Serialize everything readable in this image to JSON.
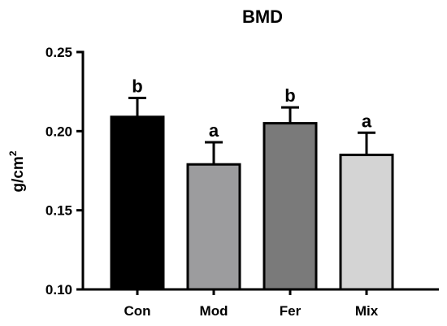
{
  "chart_data": {
    "type": "bar",
    "title": "BMD",
    "ylabel": "g/cm",
    "ylabel_superscript": "2",
    "xlabel": "",
    "categories": [
      "Con",
      "Mod",
      "Fer",
      "Mix"
    ],
    "values": [
      0.209,
      0.179,
      0.205,
      0.185
    ],
    "errors": [
      0.012,
      0.014,
      0.01,
      0.014
    ],
    "significance_labels": [
      "b",
      "a",
      "b",
      "a"
    ],
    "colors": [
      "#000000",
      "#9c9c9e",
      "#7a7a7a",
      "#d4d4d4"
    ],
    "ylim": [
      0.1,
      0.25
    ],
    "yticks": [
      0.1,
      0.15,
      0.2,
      0.25
    ],
    "ytick_labels": [
      "0.10",
      "0.15",
      "0.20",
      "0.25"
    ],
    "grid": false,
    "legend": "none"
  }
}
